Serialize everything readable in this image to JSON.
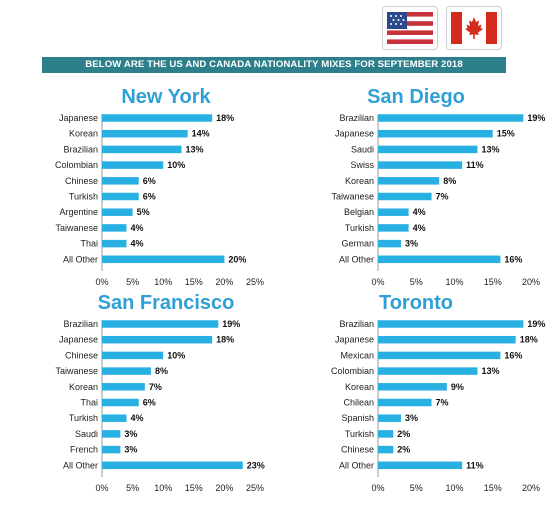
{
  "header": {
    "banner": "BELOW ARE THE US AND CANADA NATIONALITY MIXES FOR SEPTEMBER 2018",
    "flags": [
      "us-flag-icon",
      "canada-flag-icon"
    ]
  },
  "colors": {
    "banner": "#2e7f8c",
    "bar": "#29b0e3",
    "title": "#2fa0d6"
  },
  "chart_data": [
    {
      "type": "bar",
      "orientation": "horizontal",
      "title": "New York",
      "categories": [
        "Japanese",
        "Korean",
        "Brazilian",
        "Colombian",
        "Chinese",
        "Turkish",
        "Argentine",
        "Taiwanese",
        "Thai",
        "All Other"
      ],
      "values": [
        18,
        14,
        13,
        10,
        6,
        6,
        5,
        4,
        4,
        20
      ],
      "value_labels": [
        "18%",
        "14%",
        "13%",
        "10%",
        "6%",
        "6%",
        "5%",
        "4%",
        "4%",
        "20%"
      ],
      "xlim": [
        0,
        25
      ],
      "ticks": [
        "0%",
        "5%",
        "10%",
        "15%",
        "20%",
        "25%"
      ],
      "grid": false
    },
    {
      "type": "bar",
      "orientation": "horizontal",
      "title": "San Diego",
      "categories": [
        "Brazilian",
        "Japanese",
        "Saudi",
        "Swiss",
        "Korean",
        "Taiwanese",
        "Belgian",
        "Turkish",
        "German",
        "All Other"
      ],
      "values": [
        19,
        15,
        13,
        11,
        8,
        7,
        4,
        4,
        3,
        16
      ],
      "value_labels": [
        "19%",
        "15%",
        "13%",
        "11%",
        "8%",
        "7%",
        "4%",
        "4%",
        "3%",
        "16%"
      ],
      "xlim": [
        0,
        20
      ],
      "ticks": [
        "0%",
        "5%",
        "10%",
        "15%",
        "20%"
      ],
      "grid": false
    },
    {
      "type": "bar",
      "orientation": "horizontal",
      "title": "San Francisco",
      "categories": [
        "Brazilian",
        "Japanese",
        "Chinese",
        "Taiwanese",
        "Korean",
        "Thai",
        "Turkish",
        "Saudi",
        "French",
        "All Other"
      ],
      "values": [
        19,
        18,
        10,
        8,
        7,
        6,
        4,
        3,
        3,
        23
      ],
      "value_labels": [
        "19%",
        "18%",
        "10%",
        "8%",
        "7%",
        "6%",
        "4%",
        "3%",
        "3%",
        "23%"
      ],
      "xlim": [
        0,
        25
      ],
      "ticks": [
        "0%",
        "5%",
        "10%",
        "15%",
        "20%",
        "25%"
      ],
      "grid": false
    },
    {
      "type": "bar",
      "orientation": "horizontal",
      "title": "Toronto",
      "categories": [
        "Brazilian",
        "Japanese",
        "Mexican",
        "Colombian",
        "Korean",
        "Chilean",
        "Spanish",
        "Turkish",
        "Chinese",
        "All Other"
      ],
      "values": [
        19,
        18,
        16,
        13,
        9,
        7,
        3,
        2,
        2,
        11
      ],
      "value_labels": [
        "19%",
        "18%",
        "16%",
        "13%",
        "9%",
        "7%",
        "3%",
        "2%",
        "2%",
        "11%"
      ],
      "xlim": [
        0,
        20
      ],
      "ticks": [
        "0%",
        "5%",
        "10%",
        "15%",
        "20%"
      ],
      "grid": false
    }
  ]
}
